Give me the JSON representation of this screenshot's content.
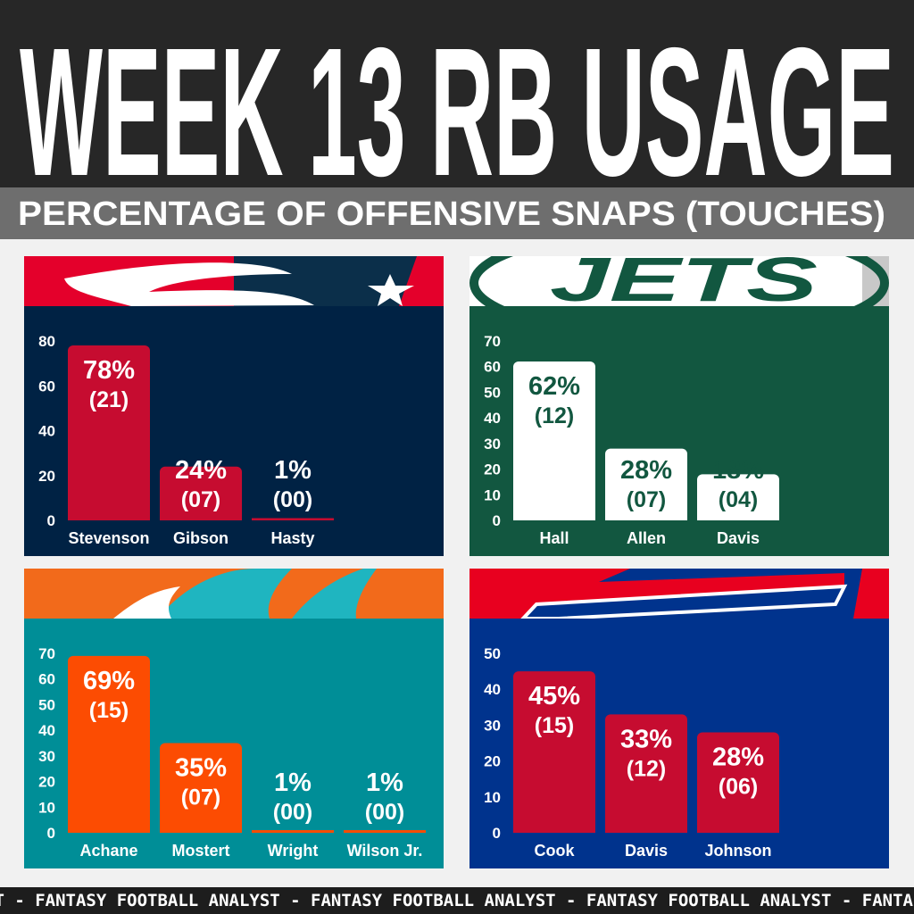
{
  "title": "WEEK 13 RB USAGE",
  "subtitle": "PERCENTAGE OF OFFENSIVE SNAPS (TOUCHES)",
  "footer": "ST - FANTASY FOOTBALL ANALYST - FANTASY FOOTBALL ANALYST - FANTASY FOOTBALL ANALYST - FANTASY FOOTB",
  "chart_data": [
    {
      "type": "bar",
      "team": "patriots",
      "ylim": [
        0,
        80
      ],
      "yticks": [
        "0",
        "20",
        "40",
        "60",
        "80"
      ],
      "categories": [
        "Stevenson",
        "Gibson",
        "Hasty"
      ],
      "values": [
        78,
        24,
        1
      ],
      "value_labels": [
        "78%",
        "24%",
        "1%"
      ],
      "touch_labels": [
        "(21)",
        "(07)",
        "(00)"
      ],
      "colors": {
        "bg": "#002244",
        "bar": "#c60c30",
        "text": "#ffffff",
        "header1": "#e4002b",
        "header2": "#0b2f4a"
      }
    },
    {
      "type": "bar",
      "team": "jets",
      "logo_text": "JETS",
      "ylim": [
        0,
        70
      ],
      "yticks": [
        "0",
        "10",
        "20",
        "30",
        "40",
        "50",
        "60",
        "70"
      ],
      "categories": [
        "Hall",
        "Allen",
        "Davis"
      ],
      "values": [
        62,
        28,
        18
      ],
      "value_labels": [
        "62%",
        "28%",
        "18%"
      ],
      "touch_labels": [
        "(12)",
        "(07)",
        "(04)"
      ],
      "colors": {
        "bg": "#125740",
        "bar": "#ffffff",
        "text": "#125740",
        "header1": "#ffffff",
        "header2": "#c8c8c8"
      }
    },
    {
      "type": "bar",
      "team": "dolphins",
      "ylim": [
        0,
        70
      ],
      "yticks": [
        "0",
        "10",
        "20",
        "30",
        "40",
        "50",
        "60",
        "70"
      ],
      "categories": [
        "Achane",
        "Mostert",
        "Wright",
        "Wilson Jr."
      ],
      "values": [
        69,
        35,
        1,
        1
      ],
      "value_labels": [
        "69%",
        "35%",
        "1%",
        "1%"
      ],
      "touch_labels": [
        "(15)",
        "(07)",
        "(00)",
        "(00)"
      ],
      "colors": {
        "bg": "#008e97",
        "bar": "#fc4c02",
        "text": "#ffffff",
        "header1": "#f26a1b",
        "header2": "#1fb5c0"
      }
    },
    {
      "type": "bar",
      "team": "bills",
      "ylim": [
        0,
        50
      ],
      "yticks": [
        "0",
        "10",
        "20",
        "30",
        "40",
        "50"
      ],
      "categories": [
        "Cook",
        "Davis",
        "Johnson"
      ],
      "values": [
        45,
        33,
        28
      ],
      "value_labels": [
        "45%",
        "33%",
        "28%"
      ],
      "touch_labels": [
        "(15)",
        "(12)",
        "(06)"
      ],
      "colors": {
        "bg": "#00338d",
        "bar": "#c60c30",
        "text": "#ffffff",
        "header1": "#e8001f",
        "header2": "#00338d"
      }
    }
  ]
}
